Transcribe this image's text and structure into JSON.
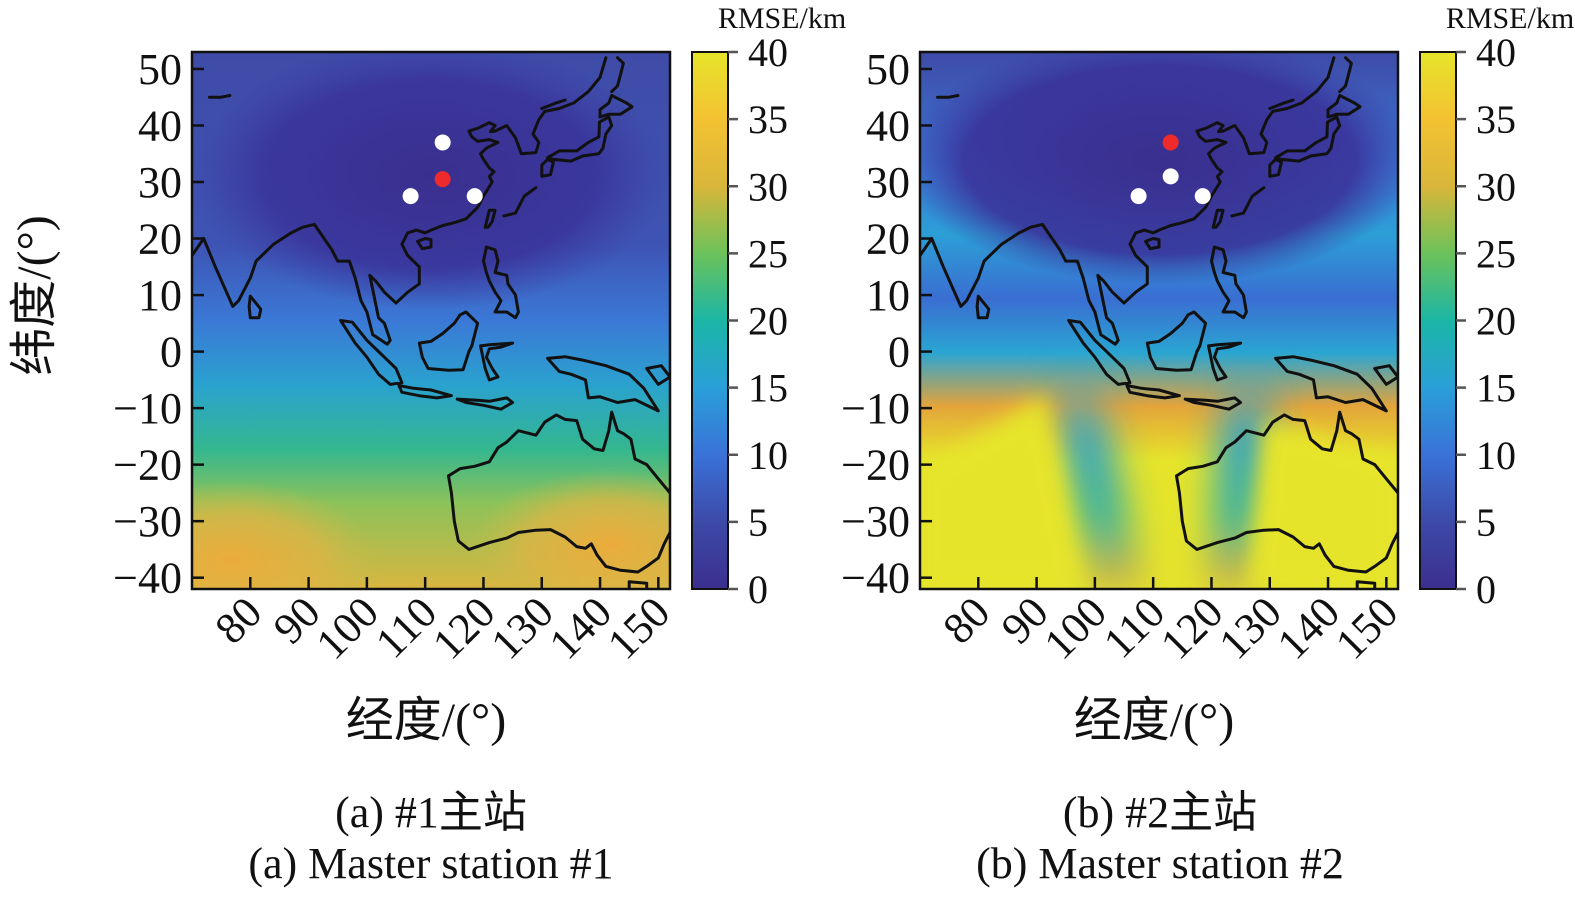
{
  "chart_data": [
    {
      "type": "heatmap",
      "panel_label": "(a)",
      "caption_cn": "(a) #1主站",
      "caption_en": "(a) Master station #1",
      "xlabel": "经度/(°)",
      "ylabel": "纬度/(°)",
      "xlim": [
        70,
        152
      ],
      "ylim": [
        -42,
        53
      ],
      "xticks": [
        "80",
        "90",
        "100",
        "110",
        "120",
        "130",
        "140",
        "150"
      ],
      "yticks": [
        "50",
        "40",
        "30",
        "20",
        "10",
        "0",
        "−10",
        "−20",
        "−30",
        "−40"
      ],
      "colorbar": {
        "label": "RMSE/km",
        "min": 0,
        "max": 40,
        "ticks": [
          "40",
          "35",
          "30",
          "25",
          "20",
          "15",
          "10",
          "5",
          "0"
        ]
      },
      "stations": [
        {
          "role": "master",
          "lon": 113,
          "lat": 30.5
        },
        {
          "role": "slave",
          "lon": 113,
          "lat": 37
        },
        {
          "role": "slave",
          "lon": 107.5,
          "lat": 27.5
        },
        {
          "role": "slave",
          "lon": 118.5,
          "lat": 27.5
        }
      ],
      "colors": {
        "master": "#ee2a2a",
        "slave": "#ffffff",
        "coast": "#111111"
      }
    },
    {
      "type": "heatmap",
      "panel_label": "(b)",
      "caption_cn": "(b) #2主站",
      "caption_en": "(b) Master station #2",
      "xlabel": "经度/(°)",
      "ylabel": "",
      "xlim": [
        70,
        152
      ],
      "ylim": [
        -42,
        53
      ],
      "xticks": [
        "80",
        "90",
        "100",
        "110",
        "120",
        "130",
        "140",
        "150"
      ],
      "yticks": [
        "50",
        "40",
        "30",
        "20",
        "10",
        "0",
        "−10",
        "−20",
        "−30",
        "−40"
      ],
      "colorbar": {
        "label": "RMSE/km",
        "min": 0,
        "max": 40,
        "ticks": [
          "40",
          "35",
          "30",
          "25",
          "20",
          "15",
          "10",
          "5",
          "0"
        ]
      },
      "stations": [
        {
          "role": "master",
          "lon": 113,
          "lat": 37
        },
        {
          "role": "slave",
          "lon": 113,
          "lat": 31
        },
        {
          "role": "slave",
          "lon": 107.5,
          "lat": 27.5
        },
        {
          "role": "slave",
          "lon": 118.5,
          "lat": 27.5
        }
      ],
      "colors": {
        "master": "#ee2a2a",
        "slave": "#ffffff",
        "coast": "#111111"
      }
    }
  ]
}
